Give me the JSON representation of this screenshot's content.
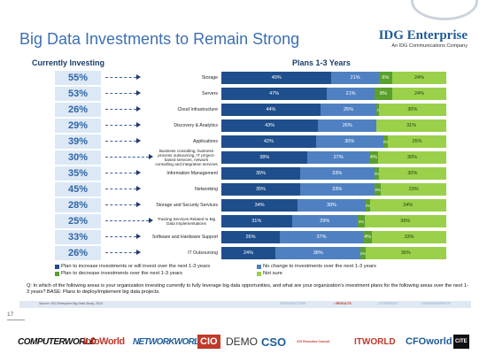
{
  "slide": {
    "title": "Big Data Investments to Remain Strong",
    "brand_name": "IDG Enterprise",
    "brand_sub": "An IDG Communications Company",
    "page_number": "17"
  },
  "colors": {
    "increase": "#1f4e8c",
    "no_change": "#4f81c2",
    "decrease": "#5aa02c",
    "not_sure": "#9bd04a",
    "title": "#3c6fb3"
  },
  "chart_data": {
    "type": "bar",
    "stacked": true,
    "orientation": "horizontal",
    "left_header": "Currently Investing",
    "right_header": "Plans 1-3 Years",
    "categories": [
      "Storage",
      "Servers",
      "Cloud Infrastructure",
      "Discovery & Analytics",
      "Applications",
      "Business consulting, business process outsourcing, IT project-based services, network consulting and integration services",
      "Information Management",
      "Networking",
      "Storage and Security Services",
      "Training Services Related to Big Data Implementations",
      "Software and Hardware Support",
      "IT Outsourcing"
    ],
    "currently_investing": [
      "55%",
      "53%",
      "26%",
      "29%",
      "39%",
      "30%",
      "35%",
      "45%",
      "28%",
      "25%",
      "33%",
      "26%"
    ],
    "series": [
      {
        "name": "Plan to increase investments or will invest over the next 1-3 years",
        "values": [
          49,
          47,
          44,
          43,
          42,
          38,
          35,
          35,
          34,
          31,
          26,
          24
        ]
      },
      {
        "name": "No change to investments over the next 1-3 years",
        "values": [
          21,
          21,
          25,
          26,
          30,
          27,
          33,
          33,
          30,
          29,
          37,
          38
        ]
      },
      {
        "name": "Plan to decrease investments over the next 1-3 years",
        "values": [
          6,
          8,
          1,
          0,
          2,
          4,
          2,
          3,
          2,
          3,
          4,
          2
        ]
      },
      {
        "name": "Not sure",
        "values": [
          24,
          24,
          30,
          31,
          26,
          30,
          30,
          29,
          34,
          36,
          33,
          36
        ]
      }
    ],
    "xlim": [
      0,
      100
    ]
  },
  "footer": {
    "question": "Q: In which of the following areas is your organization investing currently to fully leverage big data opportunities, and what are your organization's investment plans for the following areas over the next 1-3 years? BASE: Plans to deploy/implement big data projects.",
    "source": "Source: IDG Enterprise Big Data Study, 2014",
    "nav": [
      "INTRODUCTION",
      "• RESULTS",
      "• STRATEGY",
      "• DEMOGRAPHICS"
    ]
  },
  "logos": [
    "COMPUTERWORLD",
    "InfoWorld",
    "NETWORKWORLD",
    "CIO",
    "DEMO",
    "CSO",
    "CIO Executive Council",
    "ITWORLD",
    "CFOworld",
    "CITE"
  ]
}
